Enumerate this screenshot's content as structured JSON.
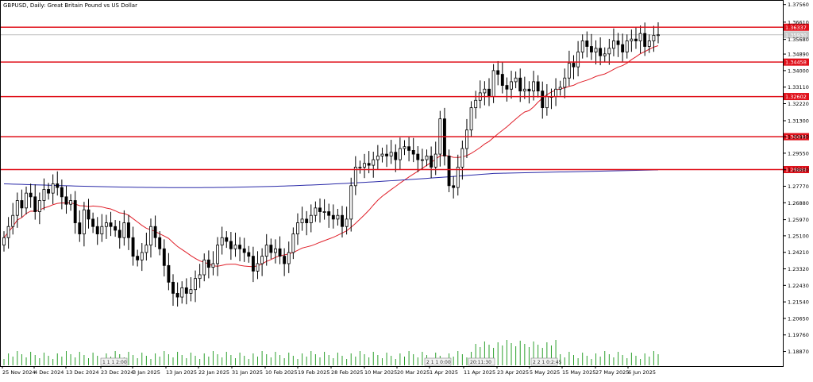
{
  "title": "GBPUSD, Daily:  Great Britain Pound vs US Dollar",
  "chart_data": {
    "type": "candlestick",
    "symbol": "GBPUSD",
    "timeframe": "Daily",
    "ylim": [
      1.1808,
      1.3776
    ],
    "y_ticks": [
      "1.37560",
      "1.36610",
      "1.35680",
      "1.34890",
      "1.34000",
      "1.33110",
      "1.32220",
      "1.31300",
      "1.30440",
      "1.29550",
      "1.28660",
      "1.27770",
      "1.26880",
      "1.25970",
      "1.25100",
      "1.24210",
      "1.23320",
      "1.22430",
      "1.21540",
      "1.20650",
      "1.19760",
      "1.18870"
    ],
    "x_labels": [
      "25 Nov 2024",
      "4 Dec 2024",
      "13 Dec 2024",
      "23 Dec 2024",
      "3 Jan 2025",
      "13 Jan 2025",
      "22 Jan 2025",
      "31 Jan 2025",
      "10 Feb 2025",
      "19 Feb 2025",
      "28 Feb 2025",
      "10 Mar 2025",
      "20 Mar 2025",
      "1 Apr 2025",
      "11 Apr 2025",
      "23 Apr 2025",
      "5 May 2025",
      "15 May 2025",
      "27 May 2025",
      "6 Jun 2025"
    ],
    "current_price": {
      "value": 1.3593,
      "label": "1.35930"
    },
    "levels": [
      {
        "value": 1.36337,
        "label": "1.36337"
      },
      {
        "value": 1.34458,
        "label": "1.34458"
      },
      {
        "value": 1.32602,
        "label": "1.32602"
      },
      {
        "value": 1.3044,
        "label": "1.30440"
      },
      {
        "value": 1.28669,
        "label": "1.28669"
      }
    ],
    "volume_annotations": [
      "1 1 1 2:00",
      "2 1 1 0:00",
      "20:11:30",
      "2 2 1 0:2:45"
    ],
    "closes": [
      1.25,
      1.256,
      1.262,
      1.27,
      1.266,
      1.274,
      1.272,
      1.264,
      1.27,
      1.276,
      1.274,
      1.279,
      1.277,
      1.272,
      1.268,
      1.27,
      1.258,
      1.252,
      1.265,
      1.26,
      1.256,
      1.252,
      1.256,
      1.258,
      1.256,
      1.254,
      1.25,
      1.258,
      1.25,
      1.24,
      1.238,
      1.242,
      1.246,
      1.256,
      1.25,
      1.244,
      1.235,
      1.226,
      1.22,
      1.218,
      1.223,
      1.22,
      1.222,
      1.228,
      1.23,
      1.238,
      1.234,
      1.236,
      1.246,
      1.25,
      1.248,
      1.244,
      1.246,
      1.244,
      1.242,
      1.24,
      1.232,
      1.236,
      1.24,
      1.246,
      1.242,
      1.244,
      1.24,
      1.236,
      1.242,
      1.252,
      1.258,
      1.26,
      1.258,
      1.262,
      1.266,
      1.264,
      1.264,
      1.262,
      1.26,
      1.262,
      1.256,
      1.26,
      1.278,
      1.288,
      1.288,
      1.29,
      1.289,
      1.292,
      1.294,
      1.295,
      1.294,
      1.296,
      1.292,
      1.298,
      1.299,
      1.297,
      1.295,
      1.292,
      1.292,
      1.294,
      1.288,
      1.295,
      1.314,
      1.294,
      1.278,
      1.277,
      1.288,
      1.298,
      1.308,
      1.32,
      1.324,
      1.328,
      1.33,
      1.326,
      1.34,
      1.338,
      1.332,
      1.33,
      1.334,
      1.336,
      1.329,
      1.33,
      1.329,
      1.334,
      1.329,
      1.32,
      1.326,
      1.326,
      1.33,
      1.331,
      1.336,
      1.344,
      1.342,
      1.35,
      1.356,
      1.353,
      1.35,
      1.352,
      1.348,
      1.349,
      1.352,
      1.356,
      1.354,
      1.35,
      1.356,
      1.357,
      1.356,
      1.36,
      1.353,
      1.356,
      1.359,
      1.3593
    ],
    "ma_fast": {
      "start": 1.272,
      "end": 1.3513,
      "period_hint": "short"
    },
    "ma_slow": {
      "start": 1.279,
      "end": 1.2865,
      "period_hint": "long"
    },
    "colors": {
      "up": "#000000",
      "down": "#000000",
      "ma_fast": "#e0202a",
      "ma_slow": "#2a2aa8",
      "levels": "#e0101a",
      "volume": "#2ca02c",
      "grid": "#d9d9d9"
    }
  }
}
